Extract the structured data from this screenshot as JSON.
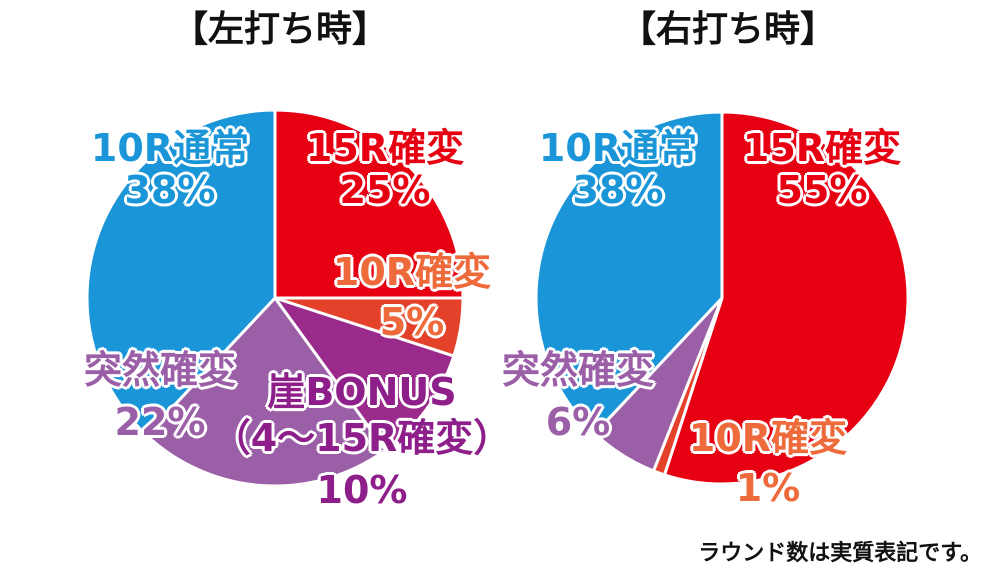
{
  "chart_data": [
    {
      "type": "pie",
      "title": "【左打ち時】",
      "categories": [
        "15R確変",
        "10R確変",
        "崖BONUS\n（4～15R確変）",
        "突然確変",
        "10R通常"
      ],
      "values": [
        25,
        5,
        10,
        22,
        38
      ],
      "value_labels": [
        "25%",
        "5%",
        "10%",
        "22%",
        "38%"
      ],
      "colors": [
        "#e60012",
        "#e4412a",
        "#9a2a8c",
        "#9b5fa8",
        "#1a96d8"
      ],
      "label_colors": [
        "#e60012",
        "#ee6a3a",
        "#8e1e8a",
        "#9b5fa8",
        "#1a96d8"
      ]
    },
    {
      "type": "pie",
      "title": "【右打ち時】",
      "categories": [
        "15R確変",
        "10R確変",
        "突然確変",
        "10R通常"
      ],
      "values": [
        55,
        1,
        6,
        38
      ],
      "value_labels": [
        "55%",
        "1%",
        "6%",
        "38%"
      ],
      "colors": [
        "#e60012",
        "#e4412a",
        "#9b5fa8",
        "#1a96d8"
      ],
      "label_colors": [
        "#e60012",
        "#ee6a3a",
        "#9b5fa8",
        "#1a96d8"
      ]
    }
  ],
  "footnote": "ラウンド数は実質表記です。"
}
